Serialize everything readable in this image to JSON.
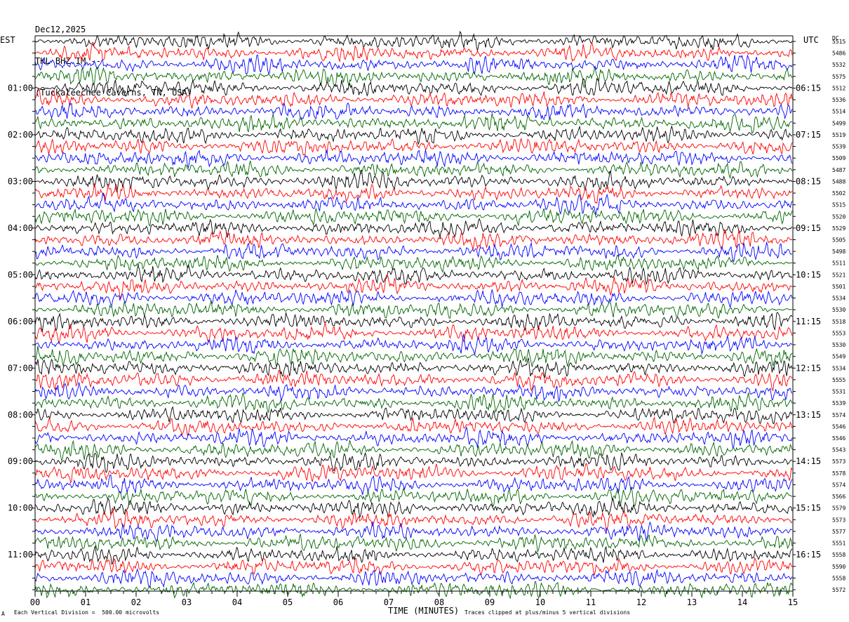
{
  "header": {
    "date": "Dec12,2025",
    "station": "TKL BHZ IM --",
    "location": "(Tuckaleechee Caverns, TN, USA)"
  },
  "left_axis_label": "EST",
  "right_axis_label": "UTC",
  "dc_label": "DC",
  "footer": {
    "x_axis_title": "TIME (MINUTES)",
    "scale_note": "Each Vertical Division =  500.00 microvolts",
    "clip_note": "Traces clipped at plus/minus 5 vertical divisions",
    "corner_mark": "A"
  },
  "chart_data": {
    "type": "line",
    "title": "TKL BHZ IM --",
    "xlabel": "TIME (MINUTES)",
    "xlim": [
      0,
      15
    ],
    "x_ticks": [
      "00",
      "01",
      "02",
      "03",
      "04",
      "05",
      "06",
      "07",
      "08",
      "09",
      "10",
      "11",
      "12",
      "13",
      "14",
      "15"
    ],
    "rows": 48,
    "row_minutes": 15,
    "trace_colors": [
      "#000000",
      "#ff0000",
      "#0000ff",
      "#006400"
    ],
    "left_time_labels": [
      {
        "row": 4,
        "label": "01:00"
      },
      {
        "row": 8,
        "label": "02:00"
      },
      {
        "row": 12,
        "label": "03:00"
      },
      {
        "row": 16,
        "label": "04:00"
      },
      {
        "row": 20,
        "label": "05:00"
      },
      {
        "row": 24,
        "label": "06:00"
      },
      {
        "row": 28,
        "label": "07:00"
      },
      {
        "row": 32,
        "label": "08:00"
      },
      {
        "row": 36,
        "label": "09:00"
      },
      {
        "row": 40,
        "label": "10:00"
      },
      {
        "row": 44,
        "label": "11:00"
      }
    ],
    "right_time_labels": [
      {
        "row": 4,
        "label": "06:15"
      },
      {
        "row": 8,
        "label": "07:15"
      },
      {
        "row": 12,
        "label": "08:15"
      },
      {
        "row": 16,
        "label": "09:15"
      },
      {
        "row": 20,
        "label": "10:15"
      },
      {
        "row": 24,
        "label": "11:15"
      },
      {
        "row": 28,
        "label": "12:15"
      },
      {
        "row": 32,
        "label": "13:15"
      },
      {
        "row": 36,
        "label": "14:15"
      },
      {
        "row": 40,
        "label": "15:15"
      },
      {
        "row": 44,
        "label": "16:15"
      }
    ],
    "dc_offsets": [
      "5515",
      "5486",
      "5532",
      "5575",
      "5512",
      "5536",
      "5514",
      "5499",
      "5519",
      "5539",
      "5509",
      "5487",
      "5488",
      "5502",
      "5515",
      "5520",
      "5529",
      "5505",
      "5498",
      "5511",
      "5521",
      "5501",
      "5534",
      "5530",
      "5518",
      "5553",
      "5530",
      "5549",
      "5534",
      "5555",
      "5531",
      "5539",
      "5574",
      "5546",
      "5546",
      "5543",
      "5573",
      "5578",
      "5574",
      "5566",
      "5579",
      "5573",
      "5577",
      "5551",
      "5558",
      "5590",
      "5558",
      "5572"
    ]
  }
}
